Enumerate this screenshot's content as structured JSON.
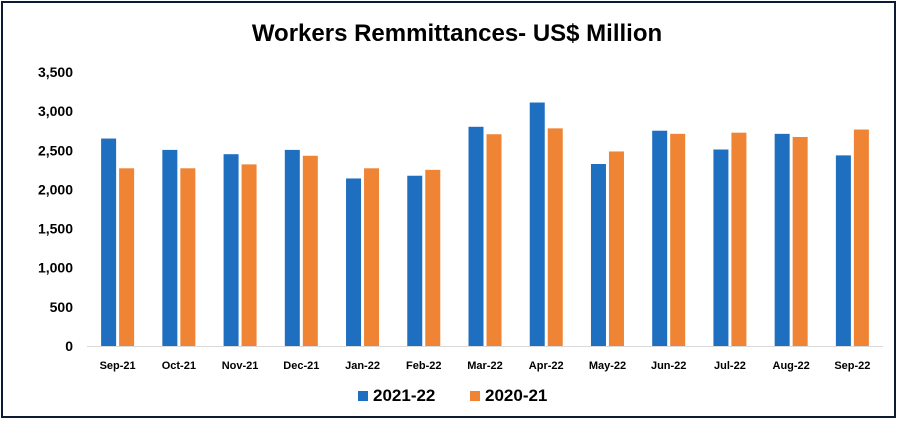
{
  "chart_data": {
    "type": "bar",
    "title": "Workers Remmittances- US$ Million",
    "xlabel": "",
    "ylabel": "",
    "categories": [
      "Sep-21",
      "Oct-21",
      "Nov-21",
      "Dec-21",
      "Jan-22",
      "Feb-22",
      "Mar-22",
      "Apr-22",
      "May-22",
      "Jun-22",
      "Jul-22",
      "Aug-22",
      "Sep-22"
    ],
    "series": [
      {
        "name": "2021-22",
        "color": "#1f6fc1",
        "values": [
          2650,
          2505,
          2450,
          2505,
          2140,
          2175,
          2800,
          3110,
          2325,
          2750,
          2510,
          2710,
          2435
        ]
      },
      {
        "name": "2020-21",
        "color": "#ee8434",
        "values": [
          2270,
          2270,
          2320,
          2430,
          2270,
          2250,
          2705,
          2780,
          2485,
          2710,
          2725,
          2670,
          2765
        ]
      }
    ],
    "ylim": [
      0,
      3500
    ],
    "yticks": [
      "0",
      "500",
      "1,000",
      "1,500",
      "2,000",
      "2,500",
      "3,000",
      "3,500"
    ],
    "grid": false,
    "legend_position": "bottom"
  }
}
